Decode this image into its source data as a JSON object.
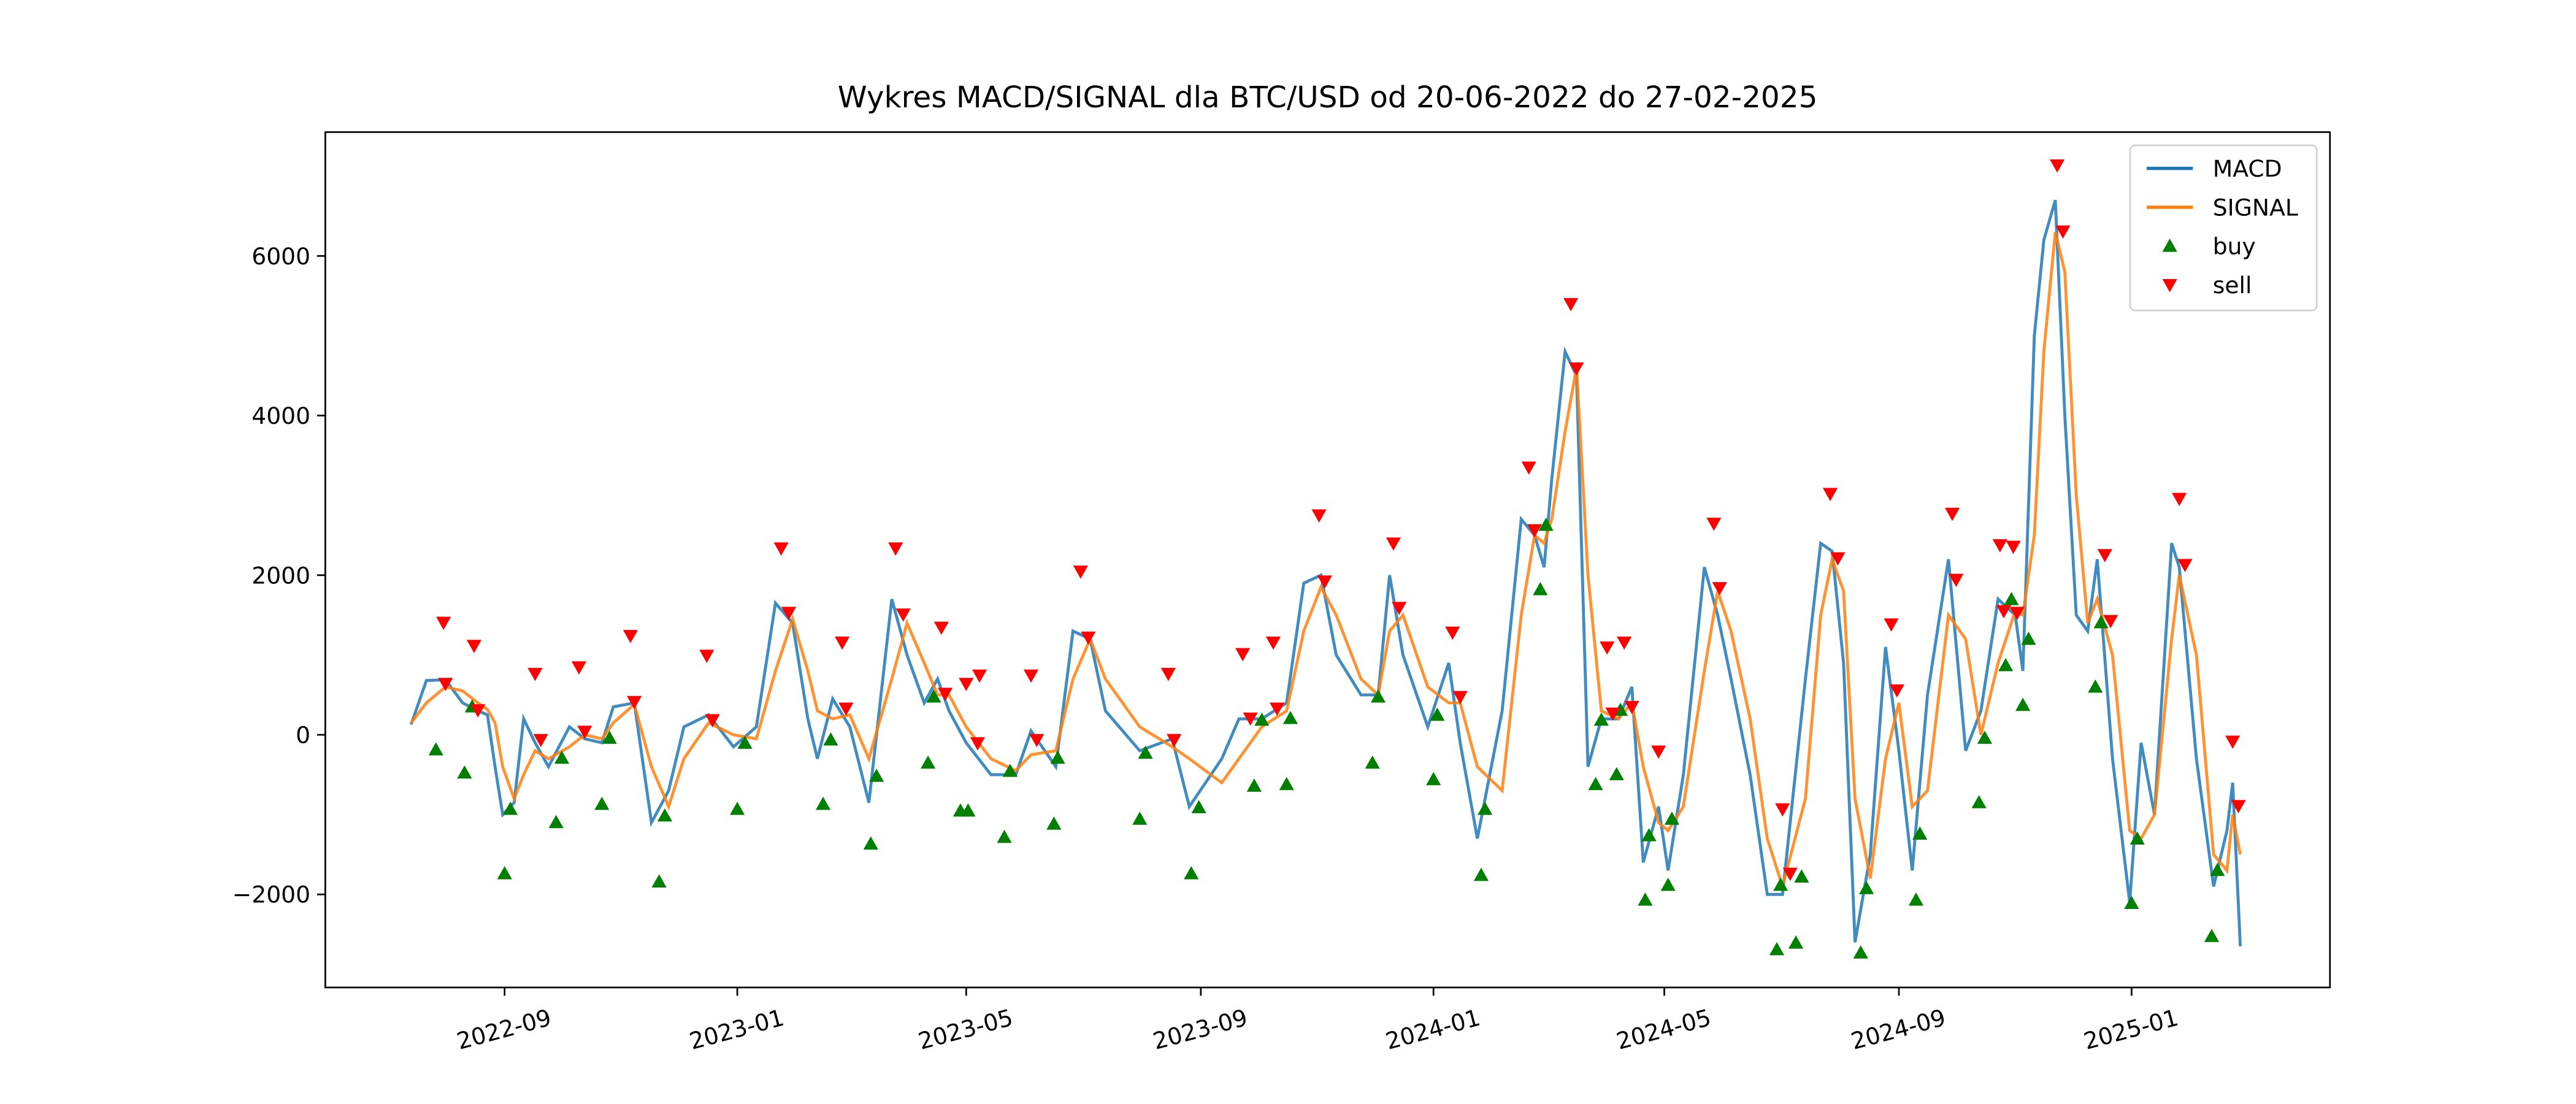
{
  "chart_data": {
    "type": "line",
    "title": "Wykres MACD/SIGNAL dla BTC/USD od 20-06-2022 do 27-02-2025",
    "xlim": [
      "2022-05-30",
      "2025-04-15"
    ],
    "xticks": [
      {
        "value": "2022-09-01",
        "label": "2022-09"
      },
      {
        "value": "2023-01-01",
        "label": "2023-01"
      },
      {
        "value": "2023-05-01",
        "label": "2023-05"
      },
      {
        "value": "2023-09-01",
        "label": "2023-09"
      },
      {
        "value": "2024-01-01",
        "label": "2024-01"
      },
      {
        "value": "2024-05-01",
        "label": "2024-05"
      },
      {
        "value": "2024-09-01",
        "label": "2024-09"
      },
      {
        "value": "2025-01-01",
        "label": "2025-01"
      }
    ],
    "ylim": [
      -3166,
      7552
    ],
    "yticks": [
      {
        "value": -2000,
        "label": "−2000"
      },
      0,
      2000,
      4000,
      6000
    ],
    "legend": "upper right",
    "x": [
      "2022-07-14",
      "2022-07-22",
      "2022-08-01",
      "2022-08-10",
      "2022-08-18",
      "2022-08-23",
      "2022-08-27",
      "2022-08-31",
      "2022-09-06",
      "2022-09-11",
      "2022-09-17",
      "2022-09-24",
      "2022-10-05",
      "2022-10-13",
      "2022-10-22",
      "2022-10-28",
      "2022-11-08",
      "2022-11-17",
      "2022-11-26",
      "2022-12-04",
      "2022-12-17",
      "2022-12-30",
      "2023-01-11",
      "2023-01-21",
      "2023-01-30",
      "2023-02-07",
      "2023-02-12",
      "2023-02-20",
      "2023-03-01",
      "2023-03-11",
      "2023-03-23",
      "2023-03-31",
      "2023-04-09",
      "2023-04-16",
      "2023-04-22",
      "2023-05-01",
      "2023-05-14",
      "2023-05-27",
      "2023-06-04",
      "2023-06-17",
      "2023-06-26",
      "2023-07-05",
      "2023-07-13",
      "2023-07-31",
      "2023-08-17",
      "2023-08-26",
      "2023-09-12",
      "2023-09-21",
      "2023-10-03",
      "2023-10-16",
      "2023-10-25",
      "2023-11-03",
      "2023-11-11",
      "2023-11-24",
      "2023-12-03",
      "2023-12-09",
      "2023-12-16",
      "2023-12-29",
      "2024-01-09",
      "2024-01-15",
      "2024-01-24",
      "2024-02-06",
      "2024-02-16",
      "2024-02-23",
      "2024-02-28",
      "2024-03-03",
      "2024-03-10",
      "2024-03-16",
      "2024-03-22",
      "2024-03-29",
      "2024-04-07",
      "2024-04-14",
      "2024-04-20",
      "2024-04-28",
      "2024-05-03",
      "2024-05-11",
      "2024-05-22",
      "2024-05-29",
      "2024-06-05",
      "2024-06-15",
      "2024-06-24",
      "2024-07-02",
      "2024-07-14",
      "2024-07-22",
      "2024-07-28",
      "2024-08-03",
      "2024-08-09",
      "2024-08-17",
      "2024-08-25",
      "2024-09-01",
      "2024-09-08",
      "2024-09-16",
      "2024-09-27",
      "2024-10-06",
      "2024-10-14",
      "2024-10-23",
      "2024-11-01",
      "2024-11-05",
      "2024-11-11",
      "2024-11-16",
      "2024-11-22",
      "2024-11-27",
      "2024-12-03",
      "2024-12-09",
      "2024-12-14",
      "2024-12-22",
      "2024-12-31",
      "2025-01-06",
      "2025-01-13",
      "2025-01-22",
      "2025-01-26",
      "2025-02-04",
      "2025-02-13",
      "2025-02-20",
      "2025-02-23",
      "2025-02-27"
    ],
    "series": [
      {
        "name": "MACD",
        "type": "line",
        "color": "#1f77b4",
        "values": [
          130,
          680,
          690,
          400,
          300,
          250,
          -400,
          -1000,
          -850,
          200,
          -100,
          -400,
          100,
          -50,
          -100,
          350,
          400,
          -1100,
          -700,
          100,
          250,
          -150,
          100,
          1650,
          1400,
          200,
          -300,
          450,
          100,
          -850,
          1700,
          1000,
          400,
          700,
          300,
          -100,
          -500,
          -500,
          50,
          -400,
          1300,
          1200,
          300,
          -200,
          -50,
          -900,
          -300,
          200,
          200,
          400,
          1900,
          2000,
          1000,
          500,
          500,
          2000,
          1000,
          100,
          900,
          -100,
          -1300,
          300,
          2700,
          2500,
          2100,
          3200,
          4800,
          4500,
          -400,
          200,
          200,
          600,
          -1600,
          -900,
          -1700,
          -500,
          2100,
          1500,
          700,
          -500,
          -2000,
          -2000,
          700,
          2400,
          2300,
          900,
          -2600,
          -1500,
          1100,
          -200,
          -1700,
          500,
          2200,
          -200,
          300,
          1700,
          1500,
          800,
          5000,
          6200,
          6700,
          4000,
          1500,
          1300,
          2200,
          -300,
          -2100,
          -100,
          -1000,
          2400,
          2100,
          -300,
          -1900,
          -1200,
          -600,
          -2650
        ]
      },
      {
        "name": "SIGNAL",
        "type": "line",
        "color": "#ff7f0e",
        "values": [
          150,
          400,
          600,
          550,
          400,
          320,
          150,
          -400,
          -800,
          -500,
          -200,
          -300,
          -150,
          0,
          -50,
          150,
          380,
          -400,
          -900,
          -300,
          150,
          0,
          -50,
          800,
          1450,
          800,
          300,
          200,
          250,
          -300,
          700,
          1400,
          900,
          500,
          500,
          100,
          -300,
          -450,
          -250,
          -200,
          700,
          1200,
          700,
          100,
          -150,
          -300,
          -600,
          -300,
          100,
          300,
          1300,
          1850,
          1500,
          700,
          500,
          1300,
          1500,
          600,
          400,
          400,
          -400,
          -700,
          1500,
          2500,
          2400,
          2700,
          3800,
          4600,
          2000,
          300,
          200,
          400,
          -400,
          -1100,
          -1200,
          -900,
          800,
          1800,
          1300,
          200,
          -1300,
          -1900,
          -800,
          1500,
          2200,
          1800,
          -800,
          -1800,
          -300,
          400,
          -900,
          -700,
          1500,
          1200,
          0,
          900,
          1550,
          1500,
          2500,
          4800,
          6300,
          5800,
          3000,
          1400,
          1700,
          1000,
          -1200,
          -1300,
          -1000,
          1200,
          2000,
          1000,
          -1500,
          -1700,
          -1000,
          -1500
        ]
      },
      {
        "name": "buy",
        "type": "scatter",
        "marker": "up",
        "color": "green",
        "x": [
          "2022-07-27",
          "2022-08-11",
          "2022-08-15",
          "2022-09-01",
          "2022-09-04",
          "2022-09-28",
          "2022-10-01",
          "2022-10-22",
          "2022-10-26",
          "2022-11-21",
          "2022-11-24",
          "2023-01-01",
          "2023-01-05",
          "2023-02-15",
          "2023-02-19",
          "2023-03-12",
          "2023-03-15",
          "2023-04-11",
          "2023-04-14",
          "2023-04-28",
          "2023-05-02",
          "2023-05-21",
          "2023-05-24",
          "2023-06-16",
          "2023-06-18",
          "2023-07-31",
          "2023-08-03",
          "2023-08-27",
          "2023-08-31",
          "2023-09-29",
          "2023-10-03",
          "2023-10-16",
          "2023-10-18",
          "2023-11-30",
          "2023-12-03",
          "2024-01-01",
          "2024-01-03",
          "2024-01-26",
          "2024-01-28",
          "2024-02-26",
          "2024-02-29",
          "2024-03-26",
          "2024-03-29",
          "2024-04-06",
          "2024-04-08",
          "2024-04-21",
          "2024-04-23",
          "2024-05-03",
          "2024-05-05",
          "2024-06-29",
          "2024-07-01",
          "2024-07-09",
          "2024-07-12",
          "2024-08-12",
          "2024-08-15",
          "2024-09-10",
          "2024-09-12",
          "2024-10-13",
          "2024-10-16",
          "2024-10-27",
          "2024-10-30",
          "2024-11-05",
          "2024-11-08",
          "2024-12-13",
          "2024-12-16",
          "2025-01-01",
          "2025-01-04",
          "2025-02-12",
          "2025-02-15"
        ],
        "values": [
          -186,
          -476,
          352,
          -1738,
          -931,
          -1097,
          -290,
          -869,
          -41,
          -1841,
          -1014,
          -931,
          -103,
          -869,
          -62,
          -1366,
          -517,
          -352,
          476,
          -952,
          -952,
          -1283,
          -455,
          -1117,
          -290,
          -1055,
          -228,
          -1738,
          -910,
          -641,
          186,
          -621,
          207,
          -352,
          476,
          -559,
          248,
          -1759,
          -931,
          1821,
          2628,
          -621,
          186,
          -497,
          310,
          -2069,
          -1262,
          -1883,
          -1055,
          -2690,
          -1883,
          -2607,
          -1779,
          -2731,
          -1924,
          -2069,
          -1241,
          -848,
          -41,
          869,
          1697,
          372,
          1200,
          600,
          1407,
          -2110,
          -1303,
          -2524,
          -1697
        ]
      },
      {
        "name": "sell",
        "type": "scatter",
        "marker": "down",
        "color": "red",
        "x": [
          "2022-07-31",
          "2022-08-01",
          "2022-08-16",
          "2022-08-18",
          "2022-09-17",
          "2022-09-20",
          "2022-10-10",
          "2022-10-13",
          "2022-11-06",
          "2022-11-08",
          "2022-12-16",
          "2022-12-19",
          "2023-01-24",
          "2023-01-28",
          "2023-02-25",
          "2023-02-27",
          "2023-03-25",
          "2023-03-29",
          "2023-04-18",
          "2023-04-20",
          "2023-05-01",
          "2023-05-08",
          "2023-05-07",
          "2023-06-04",
          "2023-06-07",
          "2023-06-30",
          "2023-07-04",
          "2023-08-15",
          "2023-08-18",
          "2023-09-23",
          "2023-09-27",
          "2023-10-09",
          "2023-10-11",
          "2023-11-02",
          "2023-11-05",
          "2023-12-11",
          "2023-12-14",
          "2024-01-11",
          "2024-01-15",
          "2024-02-20",
          "2024-02-23",
          "2024-03-13",
          "2024-03-16",
          "2024-04-01",
          "2024-04-04",
          "2024-04-10",
          "2024-04-14",
          "2024-04-28",
          "2024-05-27",
          "2024-05-30",
          "2024-07-02",
          "2024-07-06",
          "2024-07-27",
          "2024-07-31",
          "2024-08-28",
          "2024-08-31",
          "2024-09-29",
          "2024-10-01",
          "2024-10-24",
          "2024-10-26",
          "2024-10-31",
          "2024-11-02",
          "2024-11-23",
          "2024-11-26",
          "2024-12-18",
          "2024-12-21",
          "2025-01-26",
          "2025-01-29",
          "2025-02-23",
          "2025-02-26"
        ],
        "values": [
          1407,
          641,
          1117,
          310,
          766,
          -62,
          848,
          41,
          1241,
          414,
          993,
          186,
          2338,
          1531,
          1159,
          331,
          2338,
          1510,
          1345,
          517,
          641,
          745,
          -103,
          745,
          -62,
          2048,
          1221,
          766,
          -62,
          1014,
          207,
          1159,
          331,
          2752,
          1924,
          2400,
          1593,
          1283,
          476,
          3352,
          2566,
          5400,
          4593,
          1097,
          269,
          1159,
          352,
          -207,
          2648,
          1841,
          -931,
          -1738,
          3021,
          2214,
          1386,
          559,
          2772,
          1945,
          2379,
          1552,
          2359,
          1531,
          7138,
          6310,
          2255,
          1428,
          2959,
          2131,
          -83,
          -890
        ]
      }
    ]
  }
}
